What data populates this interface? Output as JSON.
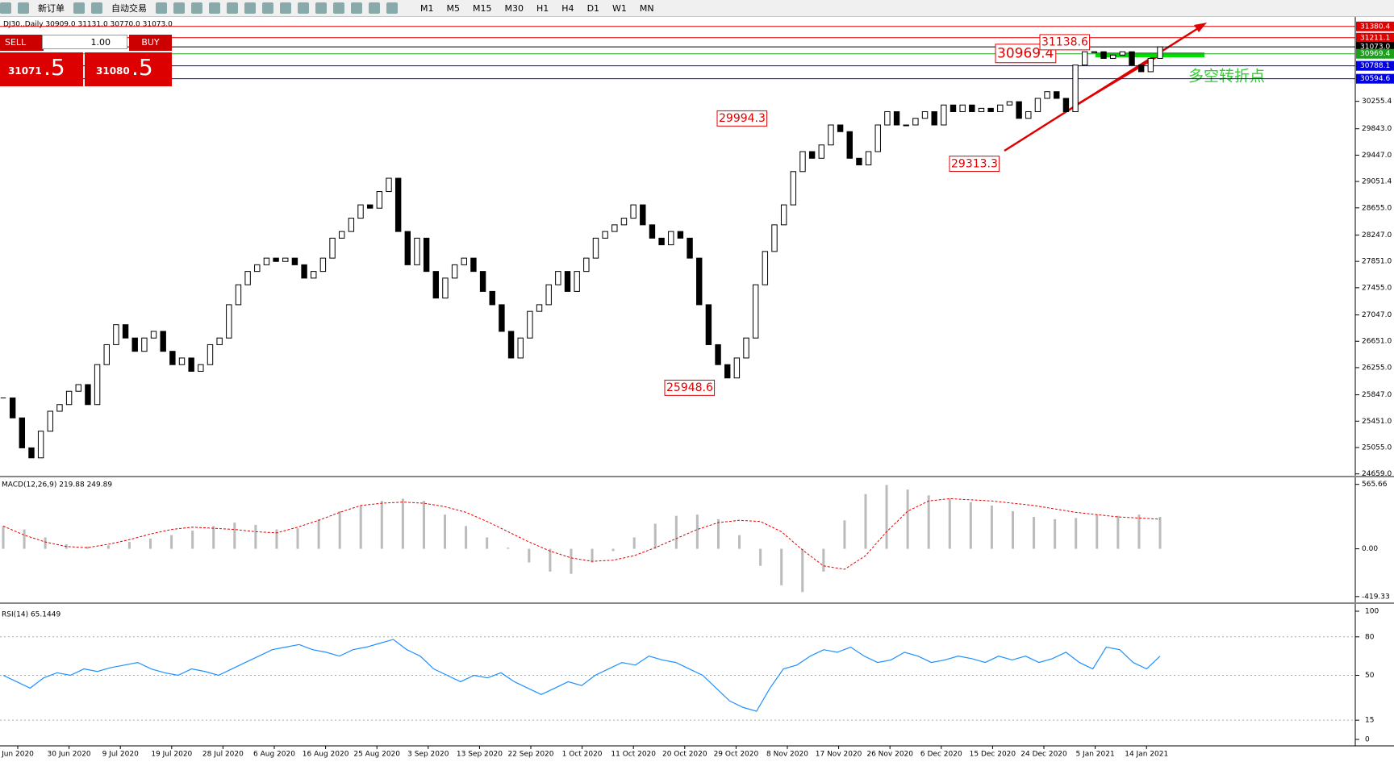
{
  "toolbar": {
    "new_order": "新订单",
    "auto_trade": "自动交易",
    "timeframes": [
      "M1",
      "M5",
      "M15",
      "M30",
      "H1",
      "H4",
      "D1",
      "W1",
      "MN"
    ]
  },
  "chart_header": "DJ30.,Daily  30909.0 31131.0 30770.0 31073.0",
  "trade_panel": {
    "sell": "SELL",
    "lot": "1.00",
    "buy": "BUY",
    "bid_main": "31071",
    "bid_frac": ".5",
    "ask_main": "31080",
    "ask_frac": ".5"
  },
  "price_chart": {
    "ylim": [
      24631,
      31511
    ],
    "yticks": [
      30255.4,
      {
        "value": 29843.0,
        "label": "29843.0"
      },
      {
        "value": 29447.0,
        "label": "29447.0"
      },
      29051.4,
      {
        "value": 28655.0,
        "label": "28655.0"
      },
      {
        "value": 28247.0,
        "label": "28247.0"
      },
      {
        "value": 27851.0,
        "label": "27851.0"
      },
      {
        "value": 27455.0,
        "label": "27455.0"
      },
      {
        "value": 27047.0,
        "label": "27047.0"
      },
      {
        "value": 26651.0,
        "label": "26651.0"
      },
      {
        "value": 26255.0,
        "label": "26255.0"
      },
      {
        "value": 25847.0,
        "label": "25847.0"
      },
      {
        "value": 25451.0,
        "label": "25451.0"
      },
      {
        "value": 25055.0,
        "label": "25055.0"
      },
      {
        "value": 24659.0,
        "label": "24659.0"
      }
    ],
    "levels": [
      {
        "value": 31380.4,
        "color": "#e00000"
      },
      {
        "value": 31211.1,
        "color": "#e00000"
      },
      {
        "value": 31073.0,
        "label": "31073.0",
        "color": "#000000"
      },
      {
        "value": 30969.4,
        "color": "#1aa01a"
      },
      {
        "value": 30788.1,
        "color": "#0000e0"
      },
      {
        "value": 30594.6,
        "color": "#0000e0"
      }
    ],
    "closes": [
      25800,
      25500,
      25050,
      24900,
      25300,
      25600,
      25700,
      25900,
      26000,
      25700,
      26300,
      26600,
      26900,
      26700,
      26500,
      26700,
      26800,
      26500,
      26300,
      26400,
      26200,
      26300,
      26600,
      26700,
      27200,
      27500,
      27700,
      27800,
      27900,
      27850,
      27900,
      27800,
      27600,
      27700,
      27900,
      28200,
      28300,
      28500,
      28700,
      28650,
      28900,
      29100,
      28300,
      27800,
      28200,
      27700,
      27300,
      27600,
      27800,
      27900,
      27700,
      27400,
      27200,
      26800,
      26400,
      26700,
      27100,
      27200,
      27500,
      27700,
      27400,
      27700,
      27900,
      28200,
      28300,
      28400,
      28500,
      28700,
      28400,
      28200,
      28100,
      28300,
      28200,
      27900,
      27200,
      26600,
      26300,
      26100,
      26400,
      26700,
      27500,
      28000,
      28400,
      28700,
      29200,
      29500,
      29400,
      29600,
      29900,
      29800,
      29400,
      29300,
      29500,
      29900,
      30100,
      29900,
      29900,
      30000,
      30100,
      29900,
      30200,
      30100,
      30200,
      30100,
      30150,
      30100,
      30200,
      30250,
      30000,
      30100,
      30300,
      30400,
      30300,
      30100,
      30800,
      31000,
      31000,
      30900,
      30950,
      31000,
      30800,
      30700,
      30900,
      31073
    ],
    "annotations": [
      30969.4,
      31138.6,
      29994.3,
      29313.3,
      25948.6
    ],
    "note": "多空转折点"
  },
  "macd": {
    "label": "MACD(12,26,9) 219.88 249.89",
    "ylim": [
      -470,
      620
    ],
    "yticks": [
      565.66,
      {
        "value": 0,
        "label": "0.00"
      },
      -419.33
    ],
    "histogram": [
      200,
      170,
      100,
      40,
      20,
      30,
      60,
      90,
      120,
      160,
      200,
      230,
      210,
      170,
      180,
      260,
      330,
      380,
      420,
      440,
      420,
      300,
      200,
      100,
      10,
      -120,
      -200,
      -220,
      -120,
      -20,
      100,
      220,
      290,
      300,
      260,
      120,
      -150,
      -320,
      -380,
      -200,
      250,
      480,
      560,
      520,
      470,
      440,
      410,
      380,
      330,
      280,
      260,
      270,
      300,
      290,
      300,
      280
    ],
    "signal": [
      200,
      120,
      60,
      20,
      10,
      40,
      80,
      130,
      170,
      190,
      180,
      170,
      150,
      140,
      190,
      250,
      320,
      380,
      400,
      410,
      400,
      370,
      320,
      240,
      150,
      60,
      -20,
      -80,
      -110,
      -100,
      -60,
      10,
      90,
      170,
      230,
      250,
      240,
      150,
      -10,
      -150,
      -180,
      -60,
      150,
      330,
      420,
      440,
      430,
      420,
      400,
      380,
      350,
      320,
      300,
      280,
      270,
      260
    ]
  },
  "rsi": {
    "label": "RSI(14) 65.1449",
    "ylim": [
      0,
      100
    ],
    "yticks": [
      100,
      80,
      50,
      15,
      0
    ],
    "levels": [
      80,
      50,
      15
    ],
    "values": [
      50,
      45,
      40,
      48,
      52,
      50,
      55,
      53,
      56,
      58,
      60,
      55,
      52,
      50,
      55,
      53,
      50,
      55,
      60,
      65,
      70,
      72,
      74,
      70,
      68,
      65,
      70,
      72,
      75,
      78,
      70,
      65,
      55,
      50,
      45,
      50,
      48,
      52,
      45,
      40,
      35,
      40,
      45,
      42,
      50,
      55,
      60,
      58,
      65,
      62,
      60,
      55,
      50,
      40,
      30,
      25,
      22,
      40,
      55,
      58,
      65,
      70,
      68,
      72,
      65,
      60,
      62,
      68,
      65,
      60,
      62,
      65,
      63,
      60,
      65,
      62,
      65,
      60,
      63,
      68,
      60,
      55,
      72,
      70,
      60,
      55,
      65
    ]
  },
  "dates": [
    "Jun 2020",
    "30 Jun 2020",
    "9 Jul 2020",
    "19 Jul 2020",
    "28 Jul 2020",
    "6 Aug 2020",
    "16 Aug 2020",
    "25 Aug 2020",
    "3 Sep 2020",
    "13 Sep 2020",
    "22 Sep 2020",
    "1 Oct 2020",
    "11 Oct 2020",
    "20 Oct 2020",
    "29 Oct 2020",
    "8 Nov 2020",
    "17 Nov 2020",
    "26 Nov 2020",
    "6 Dec 2020",
    "15 Dec 2020",
    "24 Dec 2020",
    "5 Jan 2021",
    "14 Jan 2021"
  ]
}
